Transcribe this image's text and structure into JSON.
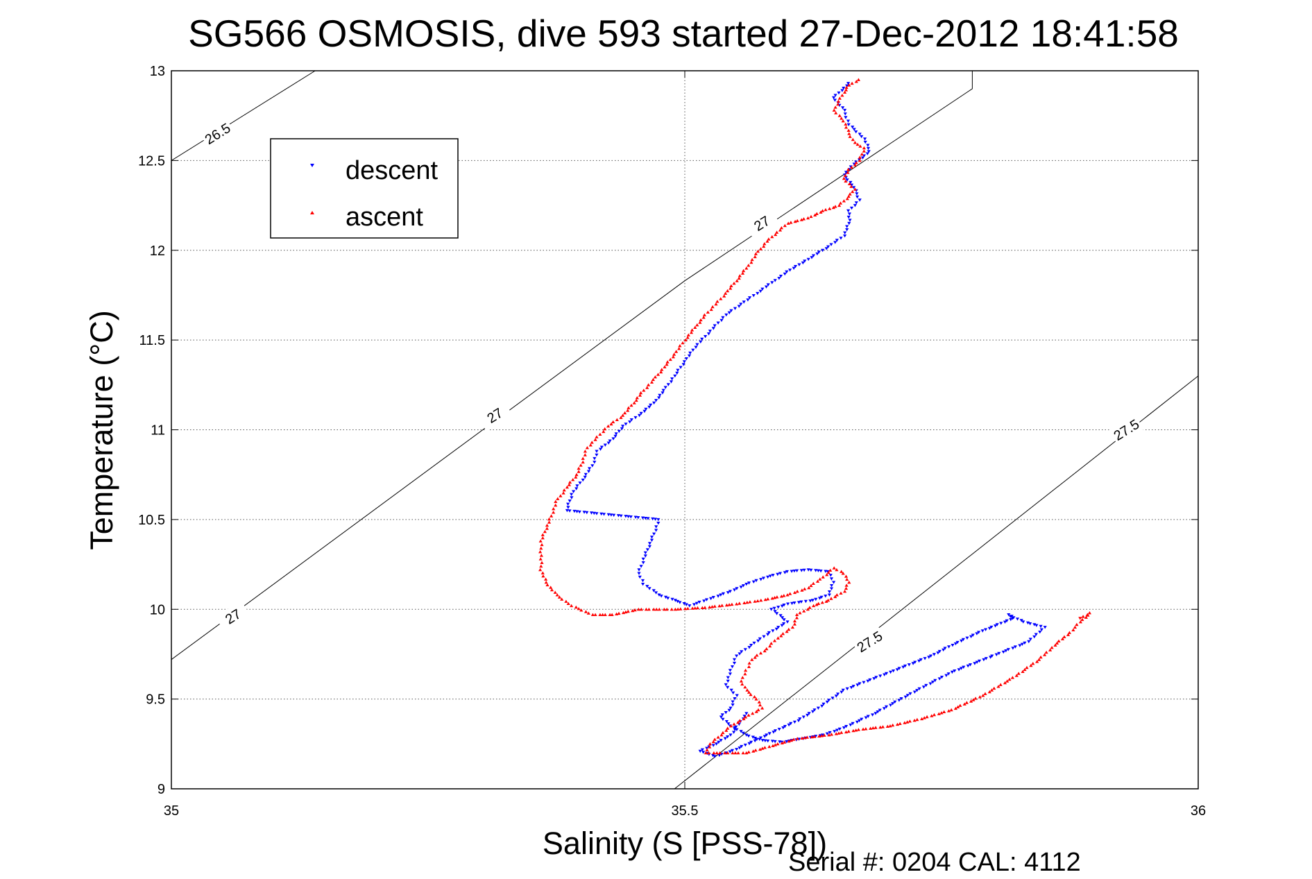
{
  "chart_data": {
    "type": "scatter",
    "title": "SG566 OSMOSIS, dive 593 started 27-Dec-2012 18:41:58",
    "xlabel": "Salinity (S [PSS-78])",
    "ylabel": "Temperature (°C)",
    "footer": "Serial #: 0204  CAL: 4112",
    "xlim": [
      35,
      36
    ],
    "ylim": [
      9,
      13
    ],
    "xticks": [
      35,
      35.5,
      36
    ],
    "xtick_labels": [
      "35",
      "35.5",
      "36"
    ],
    "yticks": [
      9,
      9.5,
      10,
      10.5,
      11,
      11.5,
      12,
      12.5,
      13
    ],
    "ytick_labels": [
      "9",
      "9.5",
      "10",
      "10.5",
      "11",
      "11.5",
      "12",
      "12.5",
      "13"
    ],
    "grid": true,
    "legend_position": "top-left",
    "contours": [
      {
        "label": "26.5",
        "points": [
          [
            35.0,
            12.5
          ],
          [
            35.14,
            13.0
          ]
        ]
      },
      {
        "label": "27",
        "points": [
          [
            35.0,
            9.72
          ],
          [
            35.5,
            11.83
          ],
          [
            35.78,
            12.9
          ],
          [
            35.78,
            13.0
          ]
        ]
      },
      {
        "label": "27.5",
        "points": [
          [
            35.49,
            9.0
          ],
          [
            36.0,
            11.3
          ]
        ]
      }
    ],
    "contour_label_marks": [
      {
        "text": "26.5",
        "x": 35.045,
        "y": 12.65,
        "angle": -32
      },
      {
        "text": "27",
        "x": 35.575,
        "y": 12.15,
        "angle": -32
      },
      {
        "text": "27",
        "x": 35.315,
        "y": 11.08,
        "angle": -32
      },
      {
        "text": "27",
        "x": 35.06,
        "y": 9.96,
        "angle": -32
      },
      {
        "text": "27.5",
        "x": 35.68,
        "y": 9.82,
        "angle": -32
      },
      {
        "text": "27.5",
        "x": 35.93,
        "y": 11.0,
        "angle": -32
      }
    ],
    "series": [
      {
        "name": "descent",
        "color": "#0000ff",
        "marker": "triangle-down",
        "path": [
          [
            35.66,
            12.93
          ],
          [
            35.645,
            12.85
          ],
          [
            35.655,
            12.78
          ],
          [
            35.66,
            12.7
          ],
          [
            35.675,
            12.62
          ],
          [
            35.68,
            12.55
          ],
          [
            35.665,
            12.48
          ],
          [
            35.655,
            12.42
          ],
          [
            35.665,
            12.35
          ],
          [
            35.67,
            12.28
          ],
          [
            35.66,
            12.22
          ],
          [
            35.66,
            12.15
          ],
          [
            35.655,
            12.08
          ],
          [
            35.64,
            12.02
          ],
          [
            35.62,
            11.95
          ],
          [
            35.6,
            11.88
          ],
          [
            35.585,
            11.82
          ],
          [
            35.57,
            11.76
          ],
          [
            35.555,
            11.7
          ],
          [
            35.54,
            11.64
          ],
          [
            35.53,
            11.58
          ],
          [
            35.52,
            11.52
          ],
          [
            35.51,
            11.46
          ],
          [
            35.5,
            11.38
          ],
          [
            35.49,
            11.3
          ],
          [
            35.48,
            11.22
          ],
          [
            35.47,
            11.15
          ],
          [
            35.455,
            11.08
          ],
          [
            35.44,
            11.02
          ],
          [
            35.43,
            10.95
          ],
          [
            35.415,
            10.88
          ],
          [
            35.41,
            10.8
          ],
          [
            35.4,
            10.72
          ],
          [
            35.39,
            10.64
          ],
          [
            35.385,
            10.55
          ],
          [
            35.475,
            10.5
          ],
          [
            35.47,
            10.42
          ],
          [
            35.465,
            10.35
          ],
          [
            35.46,
            10.28
          ],
          [
            35.455,
            10.2
          ],
          [
            35.46,
            10.14
          ],
          [
            35.475,
            10.08
          ],
          [
            35.49,
            10.05
          ],
          [
            35.505,
            10.02
          ],
          [
            35.525,
            10.06
          ],
          [
            35.545,
            10.1
          ],
          [
            35.56,
            10.14
          ],
          [
            35.58,
            10.18
          ],
          [
            35.6,
            10.21
          ],
          [
            35.62,
            10.22
          ],
          [
            35.64,
            10.21
          ],
          [
            35.645,
            10.15
          ],
          [
            35.64,
            10.08
          ],
          [
            35.625,
            10.05
          ],
          [
            35.6,
            10.03
          ],
          [
            35.585,
            10.0
          ],
          [
            35.6,
            9.93
          ],
          [
            35.58,
            9.86
          ],
          [
            35.565,
            9.8
          ],
          [
            35.55,
            9.74
          ],
          [
            35.545,
            9.66
          ],
          [
            35.54,
            9.58
          ],
          [
            35.55,
            9.52
          ],
          [
            35.545,
            9.45
          ],
          [
            35.535,
            9.4
          ],
          [
            35.545,
            9.35
          ],
          [
            35.56,
            9.3
          ],
          [
            35.575,
            9.27
          ],
          [
            35.595,
            9.26
          ],
          [
            35.615,
            9.28
          ],
          [
            35.635,
            9.3
          ],
          [
            35.655,
            9.34
          ],
          [
            35.685,
            9.42
          ],
          [
            35.72,
            9.53
          ],
          [
            35.76,
            9.65
          ],
          [
            35.8,
            9.74
          ],
          [
            35.835,
            9.82
          ],
          [
            35.85,
            9.9
          ],
          [
            35.83,
            9.93
          ],
          [
            35.815,
            9.97
          ],
          [
            35.82,
            9.95
          ],
          [
            35.79,
            9.88
          ],
          [
            35.76,
            9.8
          ],
          [
            35.74,
            9.74
          ],
          [
            35.7,
            9.65
          ],
          [
            35.655,
            9.55
          ],
          [
            35.63,
            9.45
          ],
          [
            35.61,
            9.38
          ],
          [
            35.58,
            9.3
          ],
          [
            35.55,
            9.22
          ],
          [
            35.53,
            9.18
          ],
          [
            35.515,
            9.21
          ],
          [
            35.53,
            9.25
          ],
          [
            35.545,
            9.3
          ],
          [
            35.56,
            9.42
          ]
        ]
      },
      {
        "name": "ascent",
        "color": "#ff0000",
        "marker": "triangle-up",
        "path": [
          [
            35.67,
            12.95
          ],
          [
            35.66,
            12.92
          ],
          [
            35.655,
            12.88
          ],
          [
            35.65,
            12.83
          ],
          [
            35.645,
            12.78
          ],
          [
            35.655,
            12.72
          ],
          [
            35.66,
            12.65
          ],
          [
            35.665,
            12.6
          ],
          [
            35.675,
            12.57
          ],
          [
            35.67,
            12.5
          ],
          [
            35.66,
            12.45
          ],
          [
            35.655,
            12.4
          ],
          [
            35.665,
            12.34
          ],
          [
            35.66,
            12.3
          ],
          [
            35.65,
            12.25
          ],
          [
            35.635,
            12.22
          ],
          [
            35.62,
            12.18
          ],
          [
            35.6,
            12.15
          ],
          [
            35.59,
            12.1
          ],
          [
            35.58,
            12.05
          ],
          [
            35.57,
            11.98
          ],
          [
            35.56,
            11.9
          ],
          [
            35.55,
            11.83
          ],
          [
            35.54,
            11.76
          ],
          [
            35.53,
            11.7
          ],
          [
            35.52,
            11.64
          ],
          [
            35.51,
            11.57
          ],
          [
            35.5,
            11.5
          ],
          [
            35.49,
            11.42
          ],
          [
            35.48,
            11.35
          ],
          [
            35.47,
            11.28
          ],
          [
            35.46,
            11.22
          ],
          [
            35.45,
            11.15
          ],
          [
            35.44,
            11.08
          ],
          [
            35.425,
            11.02
          ],
          [
            35.415,
            10.96
          ],
          [
            35.405,
            10.9
          ],
          [
            35.4,
            10.82
          ],
          [
            35.395,
            10.75
          ],
          [
            35.385,
            10.68
          ],
          [
            35.375,
            10.6
          ],
          [
            35.37,
            10.52
          ],
          [
            35.365,
            10.45
          ],
          [
            35.36,
            10.38
          ],
          [
            35.36,
            10.3
          ],
          [
            35.36,
            10.22
          ],
          [
            35.365,
            10.15
          ],
          [
            35.375,
            10.08
          ],
          [
            35.39,
            10.02
          ],
          [
            35.41,
            9.97
          ],
          [
            35.43,
            9.97
          ],
          [
            35.455,
            10.0
          ],
          [
            35.49,
            10.0
          ],
          [
            35.52,
            10.01
          ],
          [
            35.55,
            10.03
          ],
          [
            35.575,
            10.05
          ],
          [
            35.6,
            10.08
          ],
          [
            35.62,
            10.12
          ],
          [
            35.635,
            10.18
          ],
          [
            35.645,
            10.23
          ],
          [
            35.655,
            10.2
          ],
          [
            35.66,
            10.15
          ],
          [
            35.655,
            10.1
          ],
          [
            35.64,
            10.05
          ],
          [
            35.625,
            10.02
          ],
          [
            35.61,
            9.97
          ],
          [
            35.605,
            9.9
          ],
          [
            35.59,
            9.84
          ],
          [
            35.58,
            9.78
          ],
          [
            35.565,
            9.72
          ],
          [
            35.56,
            9.66
          ],
          [
            35.555,
            9.6
          ],
          [
            35.56,
            9.55
          ],
          [
            35.57,
            9.5
          ],
          [
            35.575,
            9.45
          ],
          [
            35.56,
            9.4
          ],
          [
            35.545,
            9.35
          ],
          [
            35.535,
            9.3
          ],
          [
            35.525,
            9.25
          ],
          [
            35.52,
            9.2
          ],
          [
            35.535,
            9.2
          ],
          [
            35.56,
            9.2
          ],
          [
            35.585,
            9.24
          ],
          [
            35.61,
            9.28
          ],
          [
            35.64,
            9.3
          ],
          [
            35.67,
            9.33
          ],
          [
            35.7,
            9.35
          ],
          [
            35.73,
            9.39
          ],
          [
            35.76,
            9.44
          ],
          [
            35.79,
            9.52
          ],
          [
            35.82,
            9.62
          ],
          [
            35.845,
            9.72
          ],
          [
            35.86,
            9.8
          ],
          [
            35.875,
            9.87
          ],
          [
            35.885,
            9.93
          ],
          [
            35.895,
            9.98
          ],
          [
            35.885,
            9.95
          ]
        ]
      }
    ]
  }
}
